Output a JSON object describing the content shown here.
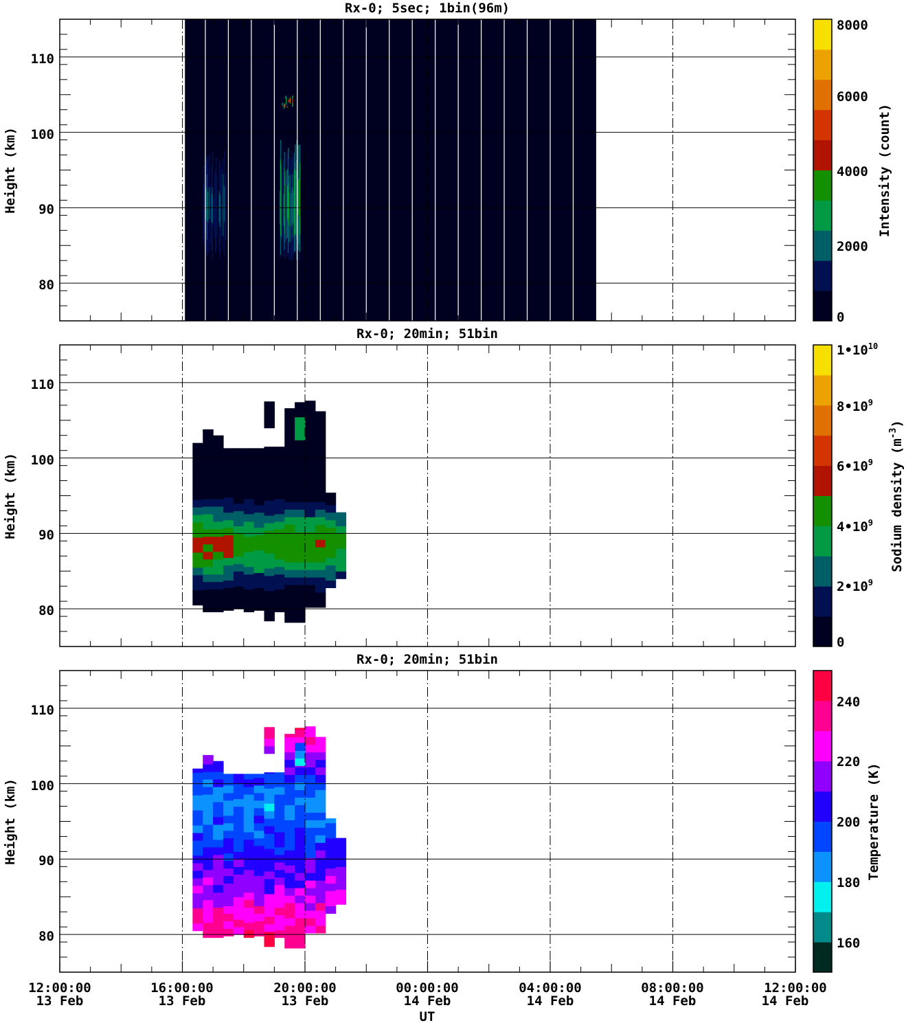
{
  "chart_data": [
    {
      "type": "heatmap",
      "title": "Rx-0;  5sec; 1bin(96m)",
      "ylabel": "Height (km)",
      "ylim": [
        75,
        115
      ],
      "yticks": [
        "80",
        "90",
        "100",
        "110"
      ],
      "xlim": [
        "12:00:00 13 Feb",
        "12:00:00 14 Feb"
      ],
      "data_time_range": [
        "16:05:00",
        "05:30:00"
      ],
      "x_vertical_gridlines": [
        "16:00:00 13 Feb",
        "20:00:00 13 Feb",
        "00:00:00 14 Feb",
        "04:00:00 14 Feb",
        "08:00:00 14 Feb"
      ],
      "colorbar": {
        "label": "Intensity (count)",
        "range": [
          0,
          8000
        ],
        "ticks": [
          "0",
          "2000",
          "4000",
          "6000",
          "8000"
        ],
        "colors": [
          "#000020",
          "#001050",
          "#005e66",
          "#009a45",
          "#148f00",
          "#b01400",
          "#d43400",
          "#e07000",
          "#eca200",
          "#f7df00"
        ]
      },
      "background_count": 0,
      "features": [
        {
          "time_range": [
            "16:40:00",
            "17:25:00"
          ],
          "height_range": [
            83,
            98
          ],
          "peak_count": 2200
        },
        {
          "time_range": [
            "19:10:00",
            "19:50:00"
          ],
          "height_range": [
            83,
            99
          ],
          "peak_count": 3400
        },
        {
          "time_range": [
            "19:15:00",
            "19:35:00"
          ],
          "height_range": [
            103,
            105
          ],
          "peak_count": 7000
        }
      ]
    },
    {
      "type": "heatmap",
      "title": "Rx-0; 20min; 51bin",
      "ylabel": "Height (km)",
      "ylim": [
        75,
        115
      ],
      "yticks": [
        "80",
        "90",
        "100",
        "110"
      ],
      "xlim": [
        "12:00:00 13 Feb",
        "12:00:00 14 Feb"
      ],
      "colorbar": {
        "label": "Sodium density (m-3)",
        "range": [
          0,
          10000000000
        ],
        "ticks": [
          "0",
          "2•10",
          "4•10",
          "6•10",
          "8•10",
          "1•10"
        ],
        "tick_exponents": [
          "",
          "9",
          "9",
          "9",
          "9",
          "10"
        ],
        "colors": [
          "#000020",
          "#001050",
          "#005e66",
          "#009a45",
          "#148f00",
          "#b01400",
          "#d43400",
          "#e07000",
          "#eca200",
          "#f7df00"
        ]
      },
      "profile_peak_height_km": 88.5,
      "profile_width_km": 4.3,
      "columns": [
        {
          "time": "16:20:00",
          "bottom_km": 80.5,
          "top_km": 102,
          "peak_density": 5400000000
        },
        {
          "time": "16:40:00",
          "bottom_km": 79.6,
          "top_km": 103.8,
          "peak_density": 5500000000
        },
        {
          "time": "17:00:00",
          "bottom_km": 79.6,
          "top_km": 103,
          "peak_density": 5400000000
        },
        {
          "time": "17:20:00",
          "bottom_km": 79.8,
          "top_km": 101.3,
          "peak_density": 5200000000
        },
        {
          "time": "17:40:00",
          "bottom_km": 80,
          "top_km": 101.3,
          "peak_density": 4300000000
        },
        {
          "time": "18:00:00",
          "bottom_km": 79.6,
          "top_km": 101.3,
          "peak_density": 4200000000
        },
        {
          "time": "18:20:00",
          "bottom_km": 79.8,
          "top_km": 101.3,
          "peak_density": 4400000000
        },
        {
          "time": "18:40:00",
          "bottom_km": 78.4,
          "top_km": 101.5,
          "peak_density": 4500000000
        },
        {
          "time": "19:00:00",
          "bottom_km": 79.6,
          "top_km": 101.5,
          "peak_density": 4600000000
        },
        {
          "time": "19:20:00",
          "bottom_km": 78.2,
          "top_km": 106.6,
          "peak_density": 4700000000
        },
        {
          "time": "19:40:00",
          "bottom_km": 78.2,
          "top_km": 107.4,
          "peak_density": 4700000000
        },
        {
          "time": "20:00:00",
          "bottom_km": 80.2,
          "top_km": 107.6,
          "peak_density": 4800000000
        },
        {
          "time": "20:20:00",
          "bottom_km": 80.2,
          "top_km": 106.2,
          "peak_density": 5400000000
        },
        {
          "time": "20:40:00",
          "bottom_km": 82.8,
          "top_km": 95.4,
          "peak_density": 4700000000
        },
        {
          "time": "21:00:00",
          "bottom_km": 84,
          "top_km": 92.8,
          "peak_density": 4200000000
        }
      ],
      "isolated_patches": [
        {
          "time": "18:40:00",
          "bottom_km": 104,
          "top_km": 107.5,
          "density": 200000000
        },
        {
          "time": "19:40:00",
          "bottom_km": 102.4,
          "top_km": 105.4,
          "density": 3500000000
        }
      ]
    },
    {
      "type": "heatmap",
      "title": "Rx-0; 20min; 51bin",
      "ylabel": "Height (km)",
      "xlabel": "UT",
      "ylim": [
        75,
        115
      ],
      "yticks": [
        "80",
        "90",
        "100",
        "110"
      ],
      "xticks": [
        {
          "time": "12:00:00",
          "date": "13 Feb"
        },
        {
          "time": "16:00:00",
          "date": "13 Feb"
        },
        {
          "time": "20:00:00",
          "date": "13 Feb"
        },
        {
          "time": "00:00:00",
          "date": "14 Feb"
        },
        {
          "time": "04:00:00",
          "date": "14 Feb"
        },
        {
          "time": "08:00:00",
          "date": "14 Feb"
        },
        {
          "time": "12:00:00",
          "date": "14 Feb"
        }
      ],
      "colorbar": {
        "label": "Temperature (K)",
        "range": [
          150,
          250
        ],
        "ticks": [
          "160",
          "180",
          "200",
          "220",
          "240"
        ],
        "colors": [
          "#002a22",
          "#008a8a",
          "#00f0f0",
          "#0c92ff",
          "#0046ff",
          "#2200ff",
          "#9000ff",
          "#ff00ff",
          "#ff0090",
          "#ff0040"
        ]
      },
      "temperature_profile": [
        {
          "height_km": 80,
          "temperature_k": 238
        },
        {
          "height_km": 86,
          "temperature_k": 218
        },
        {
          "height_km": 92,
          "temperature_k": 200
        },
        {
          "height_km": 98,
          "temperature_k": 186
        },
        {
          "height_km": 104,
          "temperature_k": 215
        },
        {
          "height_km": 107,
          "temperature_k": 236
        }
      ]
    }
  ]
}
